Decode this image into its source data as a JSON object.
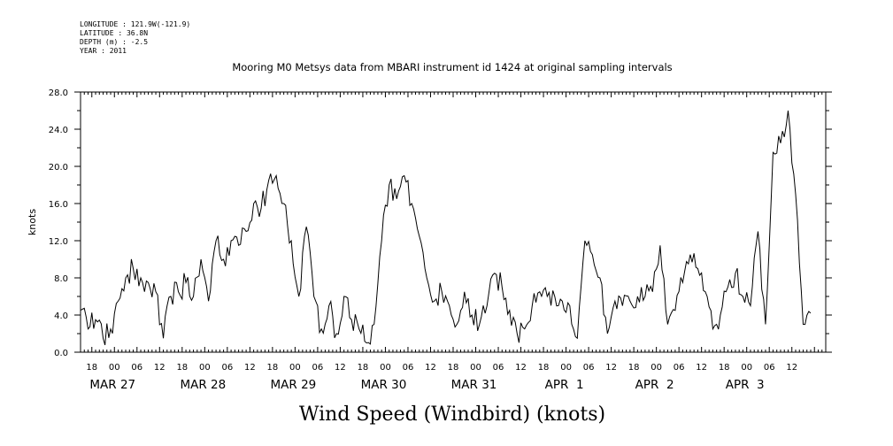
{
  "header": {
    "meta_lines": [
      "LONGITUDE : 121.9W(-121.9)",
      "LATITUDE : 36.8N",
      "DEPTH (m) : -2.5",
      "YEAR : 2011"
    ]
  },
  "chart_data": {
    "type": "line",
    "title": "Mooring M0 Metsys data from MBARI instrument id 1424 at original sampling intervals",
    "xlabel": "Wind Speed (Windbird) (knots)",
    "ylabel": "knots",
    "ylim": [
      0,
      28
    ],
    "xlim": [
      "2011-03-26T15:00",
      "2011-04-03T21:00"
    ],
    "y_ticks": [
      "0.0",
      "4.0",
      "8.0",
      "12.0",
      "16.0",
      "20.0",
      "24.0",
      "28.0"
    ],
    "x_hour_ticks": [
      "18",
      "00",
      "06",
      "12",
      "18",
      "00",
      "06",
      "12",
      "18",
      "00",
      "06",
      "12",
      "18",
      "00",
      "06",
      "12",
      "18",
      "00",
      "06",
      "12",
      "18",
      "00",
      "06",
      "12",
      "18",
      "00",
      "06",
      "12",
      "18",
      "00",
      "06",
      "12"
    ],
    "x_day_labels": [
      "MAR 27",
      "MAR 28",
      "MAR 29",
      "MAR 30",
      "MAR 31",
      "APR  1",
      "APR  2",
      "APR  3"
    ],
    "grid": false,
    "series": [
      {
        "color": "#000000",
        "x": [
          "2011-03-26T15:00",
          "2011-03-26T17:00",
          "2011-03-26T19:00",
          "2011-03-26T21:00",
          "2011-03-26T23:00",
          "2011-03-27T01:00",
          "2011-03-27T03:00",
          "2011-03-27T05:00",
          "2011-03-27T07:00",
          "2011-03-27T09:00",
          "2011-03-27T11:00",
          "2011-03-27T13:00",
          "2011-03-27T15:00",
          "2011-03-27T17:00",
          "2011-03-27T19:00",
          "2011-03-27T21:00",
          "2011-03-27T23:00",
          "2011-03-28T01:00",
          "2011-03-28T03:00",
          "2011-03-28T05:00",
          "2011-03-28T07:00",
          "2011-03-28T09:00",
          "2011-03-28T11:00",
          "2011-03-28T13:00",
          "2011-03-28T15:00",
          "2011-03-28T17:00",
          "2011-03-28T19:00",
          "2011-03-28T21:00",
          "2011-03-28T23:00",
          "2011-03-29T01:00",
          "2011-03-29T03:00",
          "2011-03-29T05:00",
          "2011-03-29T07:00",
          "2011-03-29T09:00",
          "2011-03-29T11:00",
          "2011-03-29T13:00",
          "2011-03-29T15:00",
          "2011-03-29T17:00",
          "2011-03-29T19:00",
          "2011-03-29T21:00",
          "2011-03-29T23:00",
          "2011-03-30T01:00",
          "2011-03-30T03:00",
          "2011-03-30T05:00",
          "2011-03-30T07:00",
          "2011-03-30T09:00",
          "2011-03-30T11:00",
          "2011-03-30T13:00",
          "2011-03-30T15:00",
          "2011-03-30T17:00",
          "2011-03-30T19:00",
          "2011-03-30T21:00",
          "2011-03-30T23:00",
          "2011-03-31T01:00",
          "2011-03-31T03:00",
          "2011-03-31T05:00",
          "2011-03-31T07:00",
          "2011-03-31T09:00",
          "2011-03-31T11:00",
          "2011-03-31T13:00",
          "2011-03-31T15:00",
          "2011-03-31T17:00",
          "2011-03-31T19:00",
          "2011-03-31T21:00",
          "2011-03-31T23:00",
          "2011-04-01T01:00",
          "2011-04-01T03:00",
          "2011-04-01T05:00",
          "2011-04-01T07:00",
          "2011-04-01T09:00",
          "2011-04-01T11:00",
          "2011-04-01T13:00",
          "2011-04-01T15:00",
          "2011-04-01T17:00",
          "2011-04-01T19:00",
          "2011-04-01T21:00",
          "2011-04-01T23:00",
          "2011-04-02T01:00",
          "2011-04-02T03:00",
          "2011-04-02T05:00",
          "2011-04-02T07:00",
          "2011-04-02T09:00",
          "2011-04-02T11:00",
          "2011-04-02T13:00",
          "2011-04-02T15:00",
          "2011-04-02T17:00",
          "2011-04-02T19:00",
          "2011-04-02T21:00",
          "2011-04-02T23:00",
          "2011-04-03T01:00",
          "2011-04-03T03:00",
          "2011-04-03T05:00",
          "2011-04-03T07:00",
          "2011-04-03T09:00",
          "2011-04-03T11:00",
          "2011-04-03T13:00",
          "2011-04-03T15:00",
          "2011-04-03T17:00"
        ],
        "values": [
          4.5,
          2.5,
          3.5,
          1.5,
          2.5,
          5.5,
          8.0,
          9.0,
          8.0,
          7.5,
          6.5,
          1.5,
          6.0,
          6.5,
          7.5,
          6.0,
          10.0,
          5.5,
          12.0,
          10.0,
          12.0,
          11.5,
          13.0,
          16.0,
          15.5,
          18.5,
          19.0,
          16.0,
          12.0,
          6.0,
          13.5,
          6.0,
          2.5,
          5.0,
          2.0,
          6.0,
          3.5,
          2.5,
          1.0,
          3.0,
          12.0,
          18.0,
          16.5,
          19.0,
          16.0,
          12.5,
          8.0,
          5.5,
          6.5,
          5.0,
          3.0,
          6.5,
          4.0,
          3.0,
          5.0,
          8.5,
          7.0,
          4.5,
          2.0,
          2.5,
          5.0,
          6.5,
          6.0,
          6.0,
          5.5,
          5.0,
          1.5,
          12.0,
          10.5,
          8.0,
          2.0,
          5.5,
          5.0,
          5.5,
          6.0,
          6.0,
          6.5,
          11.5,
          3.0,
          4.5,
          7.5,
          10.5,
          9.0,
          6.5,
          2.5,
          4.0,
          7.0,
          8.5,
          6.0,
          5.0,
          13.0,
          3.0,
          21.5,
          22.5,
          26.0,
          17.0,
          3.0,
          4.2
        ]
      }
    ]
  }
}
